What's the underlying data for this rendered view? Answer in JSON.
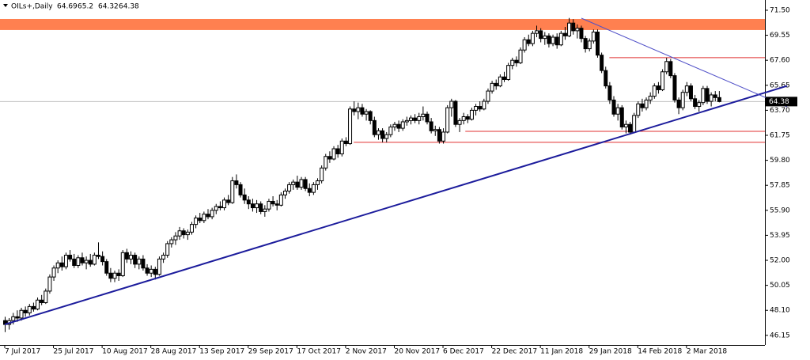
{
  "chart_data": {
    "type": "candlestick",
    "title": "OILs+,Daily",
    "ylim": [
      45.4,
      72.3
    ],
    "yticks": [
      {
        "value": 71.5,
        "label": "71.50"
      },
      69.55,
      {
        "value": 67.6,
        "label": "67.60"
      },
      65.65,
      {
        "value": 63.7,
        "label": "63.70"
      },
      61.75,
      {
        "value": 59.8,
        "label": "59.80"
      },
      57.85,
      {
        "value": 55.9,
        "label": "55.90"
      },
      53.95,
      {
        "value": 52,
        "label": "52.00"
      },
      50.05,
      {
        "value": 48.1,
        "label": "48.10"
      },
      46.15
    ],
    "grid": false,
    "up_color": "#ffffff",
    "down_color": "#000000",
    "categories": [
      "7 Jul 2017",
      null,
      null,
      null,
      null,
      null,
      null,
      null,
      null,
      null,
      null,
      null,
      "25 Jul 2017",
      null,
      null,
      null,
      null,
      null,
      null,
      null,
      null,
      null,
      null,
      null,
      "10 Aug 2017",
      null,
      null,
      null,
      null,
      null,
      null,
      null,
      null,
      null,
      null,
      null,
      "28 Aug 2017",
      null,
      null,
      null,
      null,
      null,
      null,
      null,
      null,
      null,
      null,
      null,
      "13 Sep 2017",
      null,
      null,
      null,
      null,
      null,
      null,
      null,
      null,
      null,
      null,
      null,
      "29 Sep 2017",
      null,
      null,
      null,
      null,
      null,
      null,
      null,
      null,
      null,
      null,
      null,
      "17 Oct 2017",
      null,
      null,
      null,
      null,
      null,
      null,
      null,
      null,
      null,
      null,
      null,
      "2 Nov 2017",
      null,
      null,
      null,
      null,
      null,
      null,
      null,
      null,
      null,
      null,
      null,
      "20 Nov 2017",
      null,
      null,
      null,
      null,
      null,
      null,
      null,
      null,
      null,
      null,
      null,
      "6 Dec 2017",
      null,
      null,
      null,
      null,
      null,
      null,
      null,
      null,
      null,
      null,
      null,
      "22 Dec 2017",
      null,
      null,
      null,
      null,
      null,
      null,
      null,
      null,
      null,
      null,
      null,
      "11 Jan 2018",
      null,
      null,
      null,
      null,
      null,
      null,
      null,
      null,
      null,
      null,
      null,
      "29 Jan 2018",
      null,
      null,
      null,
      null,
      null,
      null,
      null,
      null,
      null,
      null,
      null,
      "14 Feb 2018",
      null,
      null,
      null,
      null,
      null,
      null,
      null,
      null,
      null,
      null,
      null,
      "2 Mar 2018",
      null,
      null,
      null,
      null,
      null,
      null,
      null,
      null
    ],
    "ohlc": [
      [
        47.3,
        47.6,
        46.4,
        47.0
      ],
      [
        47.0,
        47.5,
        46.6,
        47.3
      ],
      [
        47.3,
        47.9,
        47.0,
        47.6
      ],
      [
        47.6,
        48.1,
        47.2,
        47.5
      ],
      [
        47.5,
        48.3,
        47.3,
        48.1
      ],
      [
        48.1,
        48.4,
        47.6,
        47.9
      ],
      [
        47.9,
        48.6,
        47.7,
        48.4
      ],
      [
        48.4,
        48.7,
        48.0,
        48.2
      ],
      [
        48.2,
        49.1,
        48.1,
        48.9
      ],
      [
        48.9,
        49.3,
        48.5,
        48.7
      ],
      [
        48.7,
        49.8,
        48.6,
        49.6
      ],
      [
        49.6,
        50.9,
        49.4,
        50.7
      ],
      [
        50.7,
        51.6,
        50.4,
        51.4
      ],
      [
        51.4,
        52.0,
        51.0,
        51.8
      ],
      [
        51.8,
        52.3,
        51.2,
        51.5
      ],
      [
        51.5,
        52.6,
        51.3,
        52.4
      ],
      [
        52.4,
        52.8,
        51.9,
        52.1
      ],
      [
        52.1,
        52.5,
        51.4,
        51.6
      ],
      [
        51.6,
        52.4,
        51.4,
        52.2
      ],
      [
        52.2,
        52.6,
        51.6,
        51.8
      ],
      [
        51.8,
        52.3,
        51.3,
        52.0
      ],
      [
        52.0,
        52.5,
        51.5,
        51.7
      ],
      [
        51.7,
        52.6,
        51.6,
        52.4
      ],
      [
        52.4,
        53.4,
        52.1,
        52.3
      ],
      [
        52.3,
        52.7,
        51.6,
        51.9
      ],
      [
        51.9,
        52.1,
        50.8,
        51.0
      ],
      [
        51.0,
        51.4,
        50.3,
        50.6
      ],
      [
        50.6,
        51.2,
        50.3,
        51.0
      ],
      [
        51.0,
        51.3,
        50.4,
        50.8
      ],
      [
        50.8,
        52.8,
        50.7,
        52.6
      ],
      [
        52.6,
        52.9,
        51.8,
        52.1
      ],
      [
        52.1,
        52.7,
        51.7,
        52.4
      ],
      [
        52.4,
        52.6,
        51.4,
        51.7
      ],
      [
        51.7,
        52.3,
        51.3,
        52.1
      ],
      [
        52.1,
        52.4,
        51.2,
        51.4
      ],
      [
        51.4,
        51.7,
        50.8,
        51.0
      ],
      [
        51.0,
        51.6,
        50.7,
        51.3
      ],
      [
        51.3,
        51.5,
        50.5,
        50.9
      ],
      [
        50.9,
        52.3,
        50.8,
        52.1
      ],
      [
        52.1,
        52.6,
        51.8,
        52.4
      ],
      [
        52.4,
        53.5,
        52.2,
        53.3
      ],
      [
        53.3,
        53.8,
        53.0,
        53.6
      ],
      [
        53.6,
        54.2,
        53.2,
        53.9
      ],
      [
        53.9,
        54.6,
        53.6,
        54.3
      ],
      [
        54.3,
        54.5,
        53.7,
        54.0
      ],
      [
        54.0,
        54.4,
        53.6,
        54.2
      ],
      [
        54.2,
        55.0,
        54.0,
        54.8
      ],
      [
        54.8,
        55.5,
        54.5,
        55.3
      ],
      [
        55.3,
        55.7,
        54.9,
        55.1
      ],
      [
        55.1,
        55.8,
        54.9,
        55.6
      ],
      [
        55.6,
        56.0,
        55.2,
        55.4
      ],
      [
        55.4,
        56.1,
        55.2,
        55.9
      ],
      [
        55.9,
        56.4,
        55.6,
        56.2
      ],
      [
        56.2,
        56.6,
        55.9,
        56.1
      ],
      [
        56.1,
        56.9,
        55.9,
        56.7
      ],
      [
        56.7,
        57.1,
        56.3,
        56.5
      ],
      [
        56.5,
        58.5,
        56.4,
        58.2
      ],
      [
        58.2,
        58.7,
        57.6,
        57.9
      ],
      [
        57.9,
        58.1,
        56.9,
        57.1
      ],
      [
        57.1,
        57.6,
        56.4,
        56.7
      ],
      [
        56.7,
        57.0,
        56.0,
        56.4
      ],
      [
        56.4,
        56.8,
        55.8,
        56.1
      ],
      [
        56.1,
        56.7,
        55.7,
        56.4
      ],
      [
        56.4,
        56.6,
        55.6,
        55.8
      ],
      [
        55.8,
        56.3,
        55.4,
        56.0
      ],
      [
        56.0,
        56.8,
        55.8,
        56.6
      ],
      [
        56.6,
        57.0,
        56.2,
        56.4
      ],
      [
        56.4,
        56.7,
        55.9,
        56.3
      ],
      [
        56.3,
        57.3,
        56.2,
        57.1
      ],
      [
        57.1,
        57.6,
        56.8,
        57.4
      ],
      [
        57.4,
        58.1,
        57.2,
        57.9
      ],
      [
        57.9,
        58.3,
        57.5,
        58.1
      ],
      [
        58.1,
        58.6,
        57.5,
        57.7
      ],
      [
        57.7,
        58.5,
        57.5,
        58.3
      ],
      [
        58.3,
        58.5,
        57.4,
        57.6
      ],
      [
        57.6,
        58.0,
        57.0,
        57.3
      ],
      [
        57.3,
        58.1,
        57.1,
        57.9
      ],
      [
        57.9,
        58.4,
        57.5,
        58.2
      ],
      [
        58.2,
        59.4,
        58.0,
        59.2
      ],
      [
        59.2,
        60.3,
        59.0,
        60.1
      ],
      [
        60.1,
        60.5,
        59.6,
        59.9
      ],
      [
        59.9,
        60.9,
        59.8,
        60.7
      ],
      [
        60.7,
        61.0,
        60.0,
        60.3
      ],
      [
        60.3,
        61.5,
        60.1,
        61.3
      ],
      [
        61.3,
        61.6,
        60.9,
        61.1
      ],
      [
        61.1,
        64.0,
        61.0,
        63.8
      ],
      [
        63.8,
        64.4,
        63.3,
        63.6
      ],
      [
        63.6,
        64.3,
        63.0,
        63.9
      ],
      [
        63.9,
        64.2,
        63.2,
        63.4
      ],
      [
        63.4,
        63.8,
        62.9,
        63.6
      ],
      [
        63.6,
        63.7,
        62.6,
        62.9
      ],
      [
        62.9,
        63.2,
        61.6,
        61.8
      ],
      [
        61.8,
        62.3,
        61.4,
        62.1
      ],
      [
        62.1,
        62.3,
        61.2,
        61.5
      ],
      [
        61.5,
        62.0,
        61.2,
        61.8
      ],
      [
        61.8,
        62.6,
        61.6,
        62.4
      ],
      [
        62.4,
        62.8,
        62.1,
        62.6
      ],
      [
        62.6,
        62.9,
        62.0,
        62.3
      ],
      [
        62.3,
        63.0,
        62.1,
        62.8
      ],
      [
        62.8,
        63.2,
        62.5,
        62.9
      ],
      [
        62.9,
        63.3,
        62.6,
        63.1
      ],
      [
        63.1,
        63.4,
        62.7,
        62.9
      ],
      [
        62.9,
        63.5,
        62.6,
        63.2
      ],
      [
        63.2,
        64.0,
        62.9,
        63.4
      ],
      [
        63.4,
        63.6,
        62.6,
        62.8
      ],
      [
        62.8,
        63.1,
        61.9,
        62.1
      ],
      [
        62.1,
        62.5,
        61.7,
        62.2
      ],
      [
        62.2,
        62.4,
        61.1,
        61.3
      ],
      [
        61.3,
        62.3,
        61.1,
        62.0
      ],
      [
        62.0,
        64.1,
        61.9,
        63.9
      ],
      [
        63.9,
        64.6,
        63.2,
        64.4
      ],
      [
        64.4,
        64.5,
        62.4,
        62.6
      ],
      [
        62.6,
        63.1,
        62.0,
        62.9
      ],
      [
        62.9,
        63.5,
        62.6,
        63.2
      ],
      [
        63.2,
        63.4,
        62.7,
        63.0
      ],
      [
        63.0,
        63.9,
        62.9,
        63.7
      ],
      [
        63.7,
        64.2,
        63.3,
        64.0
      ],
      [
        64.0,
        64.4,
        63.6,
        63.8
      ],
      [
        63.8,
        64.6,
        63.7,
        64.4
      ],
      [
        64.4,
        65.4,
        64.2,
        65.2
      ],
      [
        65.2,
        66.0,
        65.0,
        65.8
      ],
      [
        65.8,
        66.1,
        65.3,
        65.6
      ],
      [
        65.6,
        66.5,
        65.5,
        66.3
      ],
      [
        66.3,
        66.7,
        65.9,
        66.1
      ],
      [
        66.1,
        67.4,
        66.0,
        67.2
      ],
      [
        67.2,
        67.8,
        66.9,
        67.6
      ],
      [
        67.6,
        67.9,
        67.1,
        67.4
      ],
      [
        67.4,
        68.6,
        67.3,
        68.4
      ],
      [
        68.4,
        69.4,
        68.2,
        69.2
      ],
      [
        69.2,
        69.6,
        68.7,
        68.9
      ],
      [
        68.9,
        69.9,
        68.7,
        69.7
      ],
      [
        69.7,
        70.3,
        69.4,
        69.9
      ],
      [
        69.9,
        70.1,
        69.0,
        69.3
      ],
      [
        69.3,
        69.8,
        68.8,
        69.5
      ],
      [
        69.5,
        69.7,
        68.6,
        68.9
      ],
      [
        68.9,
        69.6,
        68.7,
        69.4
      ],
      [
        69.4,
        69.7,
        68.5,
        68.8
      ],
      [
        68.8,
        69.9,
        68.7,
        69.7
      ],
      [
        69.7,
        70.2,
        69.2,
        69.5
      ],
      [
        69.5,
        70.9,
        69.4,
        70.5
      ],
      [
        70.5,
        70.8,
        69.6,
        69.9
      ],
      [
        69.9,
        70.4,
        69.3,
        70.1
      ],
      [
        70.1,
        70.3,
        69.0,
        69.3
      ],
      [
        69.3,
        69.5,
        68.2,
        68.5
      ],
      [
        68.5,
        69.3,
        68.3,
        69.1
      ],
      [
        69.1,
        70.0,
        68.9,
        69.8
      ],
      [
        69.8,
        70.0,
        67.8,
        68.0
      ],
      [
        68.0,
        68.2,
        66.6,
        66.8
      ],
      [
        66.8,
        67.1,
        65.4,
        65.6
      ],
      [
        65.6,
        65.9,
        64.2,
        64.5
      ],
      [
        64.5,
        64.8,
        63.2,
        63.4
      ],
      [
        63.4,
        64.2,
        62.9,
        63.9
      ],
      [
        63.9,
        64.1,
        62.2,
        62.4
      ],
      [
        62.4,
        62.9,
        61.9,
        62.6
      ],
      [
        62.6,
        62.8,
        61.8,
        62.0
      ],
      [
        62.0,
        63.5,
        61.9,
        63.3
      ],
      [
        63.3,
        64.4,
        63.1,
        64.2
      ],
      [
        64.2,
        64.6,
        63.6,
        63.9
      ],
      [
        63.9,
        64.7,
        63.7,
        64.5
      ],
      [
        64.5,
        65.1,
        64.2,
        64.8
      ],
      [
        64.8,
        65.8,
        64.6,
        65.6
      ],
      [
        65.6,
        65.9,
        65.0,
        65.3
      ],
      [
        65.3,
        66.9,
        65.2,
        66.7
      ],
      [
        66.7,
        67.8,
        66.5,
        67.5
      ],
      [
        67.5,
        67.7,
        66.2,
        66.4
      ],
      [
        66.4,
        66.6,
        64.3,
        64.5
      ],
      [
        64.5,
        64.7,
        63.4,
        63.9
      ],
      [
        63.9,
        65.3,
        63.7,
        65.1
      ],
      [
        65.1,
        65.9,
        64.8,
        65.6
      ],
      [
        65.6,
        65.8,
        64.4,
        64.6
      ],
      [
        64.6,
        64.9,
        63.8,
        64.0
      ],
      [
        64.0,
        64.5,
        63.6,
        64.3
      ],
      [
        64.3,
        65.6,
        64.1,
        65.4
      ],
      [
        65.4,
        65.6,
        64.2,
        64.4
      ],
      [
        64.4,
        65.1,
        64.0,
        64.9
      ],
      [
        64.9,
        65.2,
        64.4,
        64.69
      ],
      [
        64.69,
        65.2,
        64.32,
        64.38
      ]
    ],
    "zones": [
      {
        "y": [
          69.96,
          70.82
        ],
        "color": "#ff8050"
      }
    ],
    "hlines": [
      {
        "value": 67.8,
        "from": 149,
        "color": "#e03030"
      },
      {
        "value": 62.06,
        "from": 113.5,
        "color": "#e03030"
      },
      {
        "value": 61.2,
        "from": 86,
        "color": "#e03030"
      }
    ],
    "trendlines": [
      {
        "x": [
          0,
          192.8
        ],
        "y": [
          47.0,
          65.6
        ],
        "color": "#1c1c9c",
        "width": 2
      },
      {
        "x": [
          142.1,
          192.8
        ],
        "y": [
          70.88,
          63.97
        ],
        "color": "#5050c8",
        "width": 1
      }
    ]
  }
}
